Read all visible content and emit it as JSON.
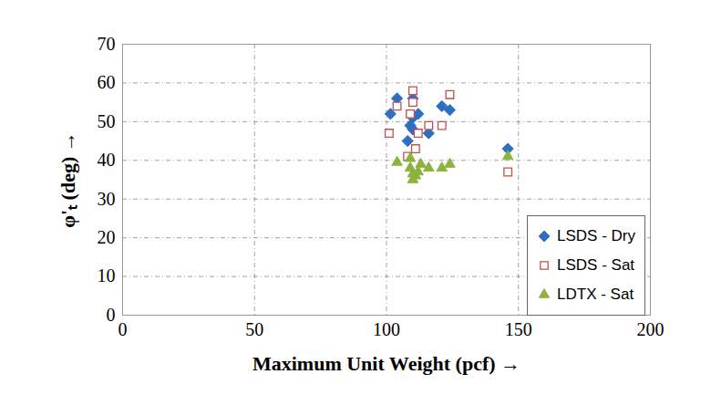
{
  "chart_data": {
    "type": "scatter",
    "x_label": "Maximum Unit Weight (pcf)",
    "y_label": "φ'ₜ (deg)",
    "xlim": [
      0,
      200
    ],
    "xticks": [
      0,
      50,
      100,
      150,
      200
    ],
    "ylim": [
      0,
      70
    ],
    "yticks": [
      0,
      10,
      20,
      30,
      40,
      50,
      60,
      70
    ],
    "grid": true,
    "legend": "bottom-right",
    "series": [
      {
        "name": "LSDS - Dry",
        "color": "#2e6fc4",
        "marker": "diamond",
        "x": [
          101.5,
          104,
          108,
          109,
          110,
          110,
          110,
          112,
          116,
          121,
          124,
          146
        ],
        "values": [
          52,
          56,
          45,
          49,
          48,
          51,
          56,
          52,
          47,
          54,
          53,
          43
        ]
      },
      {
        "name": "LSDS - Sat",
        "color": "#c0504d",
        "marker": "square-open",
        "x": [
          101,
          104,
          108,
          109,
          110,
          110,
          111,
          112,
          116,
          121,
          124,
          146
        ],
        "values": [
          47,
          54,
          41,
          52,
          58,
          55,
          43,
          47,
          49,
          49,
          57,
          37
        ]
      },
      {
        "name": "LDTX - Sat",
        "color": "#8db33f",
        "marker": "triangle",
        "x": [
          104,
          109,
          109,
          110,
          110,
          111,
          112,
          113,
          116,
          121,
          124,
          146
        ],
        "values": [
          39.5,
          40.5,
          38,
          35,
          36.5,
          36,
          37,
          39,
          38,
          38,
          39,
          41
        ]
      }
    ]
  }
}
